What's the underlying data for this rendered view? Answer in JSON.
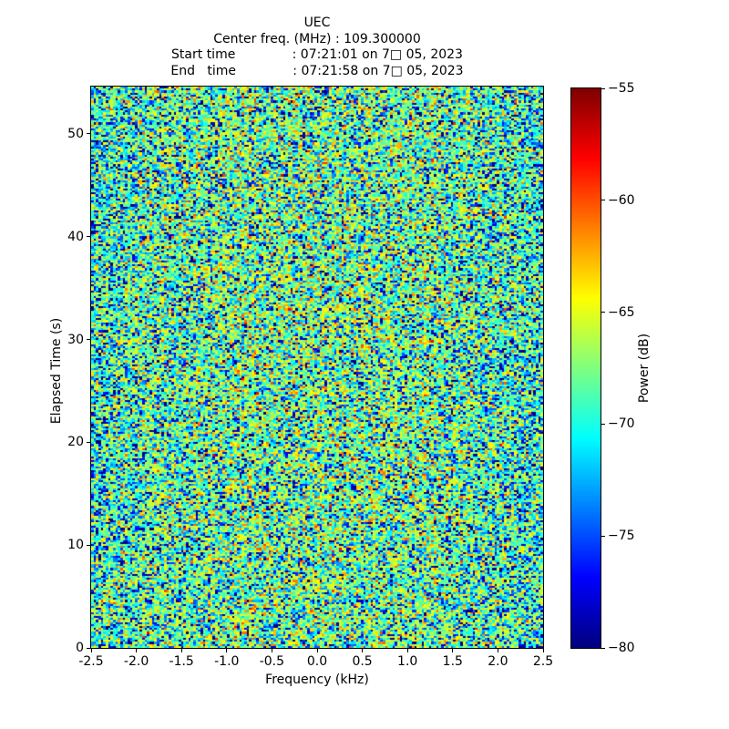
{
  "figure": {
    "background_color": "#ffffff",
    "text_color": "#000000"
  },
  "chart_data": {
    "type": "heatmap",
    "title": "UEC",
    "subtitle_lines": [
      "Center freq. (MHz) : 109.300000",
      "Start time              : 07:21:01 on 7□ 05, 2023",
      "End   time              : 07:21:58 on 7□ 05, 2023"
    ],
    "xlabel": "Frequency (kHz)",
    "ylabel": "Elapsed Time (s)",
    "x_axis": {
      "min": -2.5,
      "max": 2.5,
      "tick_values": [
        -2.5,
        -2.0,
        -1.5,
        -1.0,
        -0.5,
        0.0,
        0.5,
        1.0,
        1.5,
        2.0,
        2.5
      ],
      "tick_labels": [
        "-2.5",
        "-2.0",
        "-1.5",
        "-1.0",
        "-0.5",
        "0.0",
        "0.5",
        "1.0",
        "1.5",
        "2.0",
        "2.5"
      ]
    },
    "y_axis": {
      "min": 0,
      "max": 54.6,
      "tick_values": [
        0,
        10,
        20,
        30,
        40,
        50
      ],
      "tick_labels": [
        "0",
        "10",
        "20",
        "30",
        "40",
        "50"
      ]
    },
    "colorbar": {
      "label": "Power (dB)",
      "vmin": -80,
      "vmax": -55,
      "tick_values": [
        -55,
        -60,
        -65,
        -70,
        -75,
        -80
      ],
      "tick_labels": [
        "−55",
        "−60",
        "−65",
        "−70",
        "−75",
        "−80"
      ],
      "colormap": "jet"
    },
    "heatmap": {
      "description": "Featureless wideband random noise spectrogram; no coherent signal visible. Power values mostly -72 to -62 dB (green/cyan/yellow speckle) with scattered deep-blue dropouts and rare orange/red specks. Slightly bluer (lower power) near band edges.",
      "cols": 186,
      "rows": 281,
      "seed": 20230705,
      "mean_power_db": -66.6,
      "edge_rolloff_db": 1.8,
      "distribution": "exponential_power_in_db"
    },
    "grid": false,
    "legend": false
  }
}
